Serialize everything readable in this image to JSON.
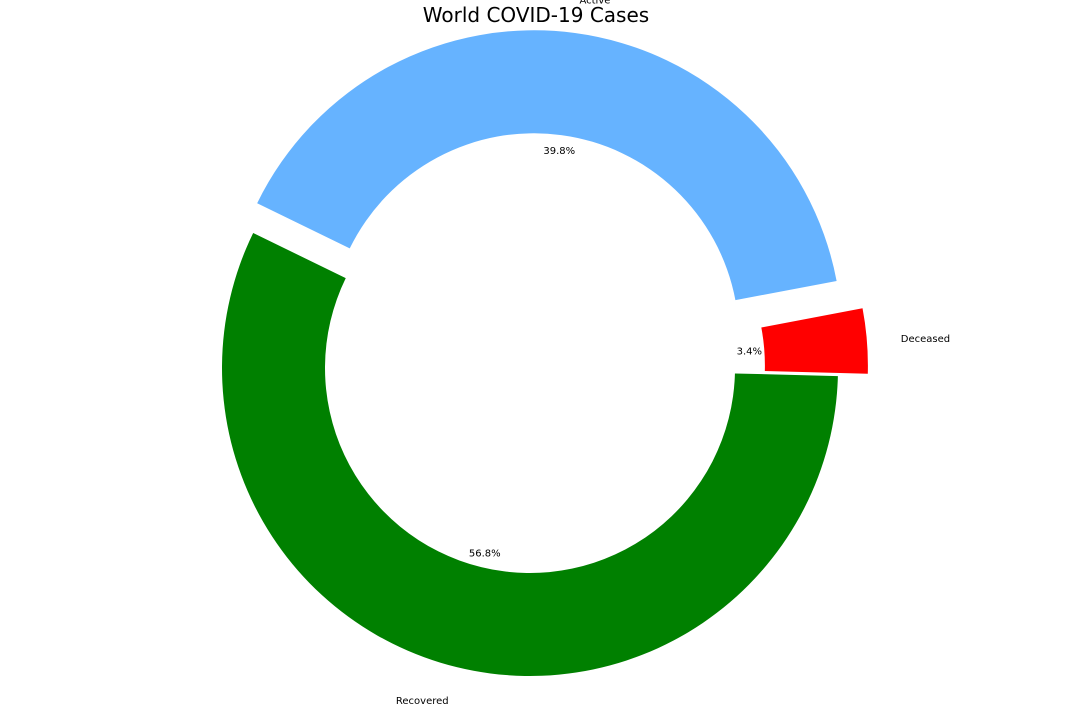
{
  "chart_data": {
    "type": "pie",
    "style": "donut",
    "title": "World COVID-19 Cases",
    "categories": [
      "Active",
      "Deceased",
      "Recovered"
    ],
    "values": [
      39.8,
      3.4,
      56.8
    ],
    "percent_labels": [
      "39.8%",
      "3.4%",
      "56.8%"
    ],
    "colors": [
      "#66b3ff",
      "#ff0000",
      "#008000"
    ],
    "exploded": [
      true,
      true,
      false
    ],
    "legend": "none"
  }
}
